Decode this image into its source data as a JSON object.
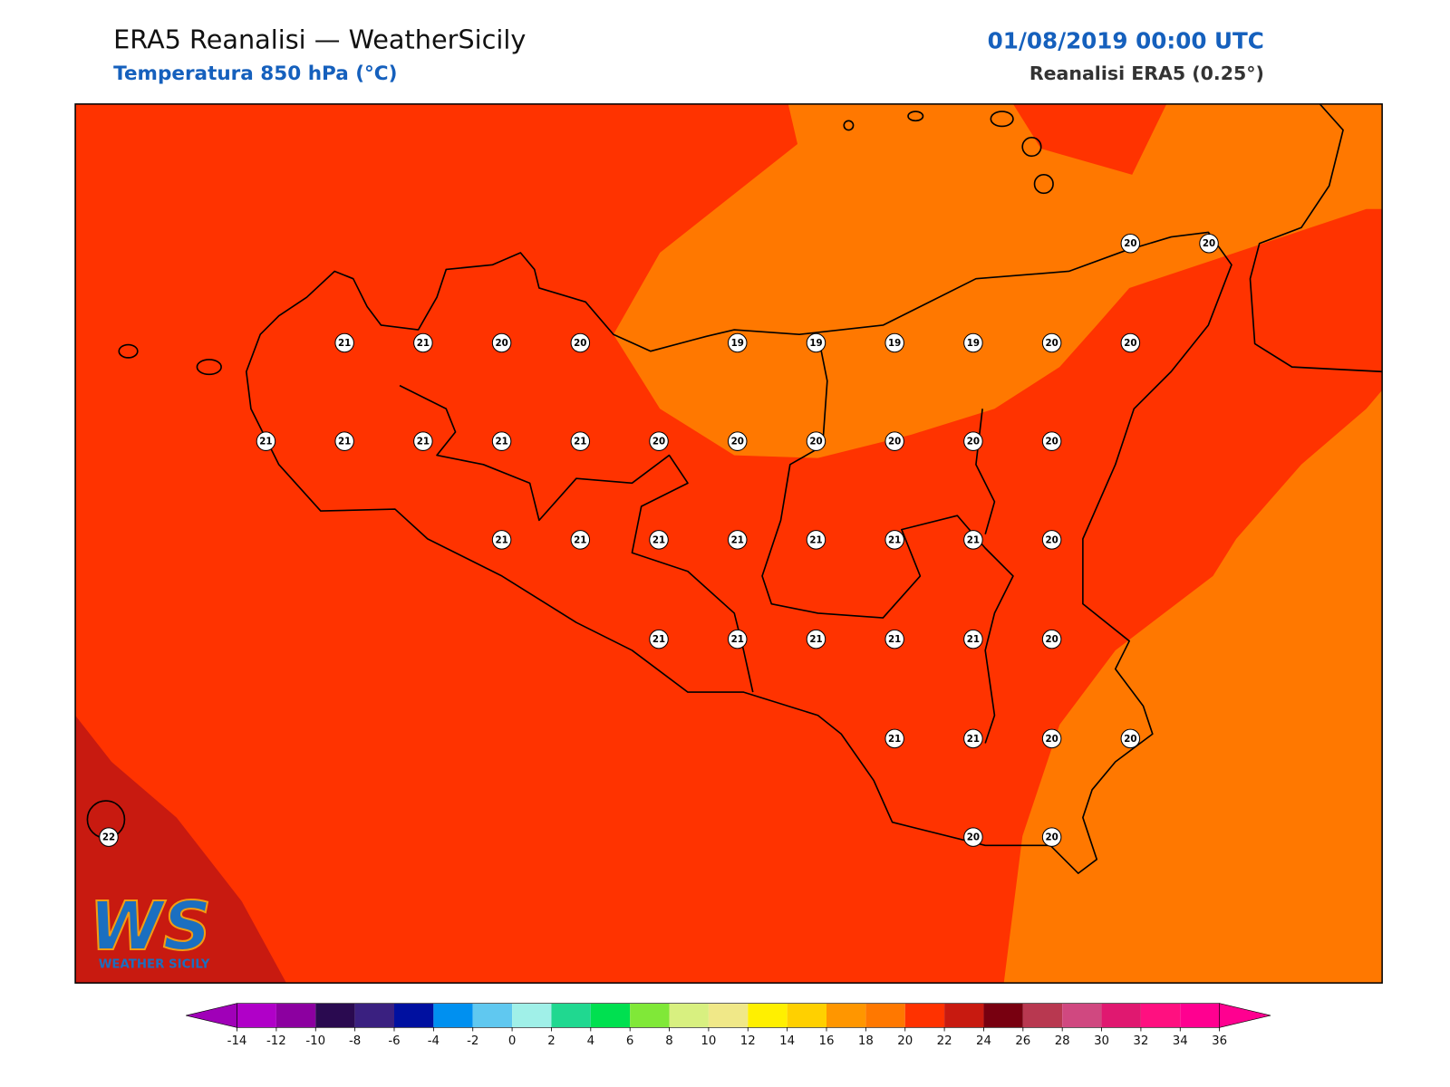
{
  "header": {
    "title": "ERA5 Reanalisi — WeatherSicily",
    "subtitle": "Temperatura 850 hPa (°C)",
    "date": "01/08/2019 00:00 UTC",
    "source": "Reanalisi ERA5 (0.25°)"
  },
  "stations": {
    "rows": [
      [
        null,
        null,
        null,
        null,
        null,
        null,
        null,
        null,
        null,
        null,
        null,
        null,
        null,
        20,
        20
      ],
      [
        null,
        null,
        null,
        21,
        21,
        20,
        20,
        null,
        19,
        19,
        19,
        19,
        20,
        20,
        null
      ],
      [
        null,
        null,
        21,
        21,
        21,
        21,
        21,
        20,
        20,
        20,
        20,
        20,
        20,
        null,
        null
      ],
      [
        null,
        null,
        null,
        null,
        null,
        21,
        21,
        21,
        21,
        21,
        21,
        21,
        20,
        null,
        null
      ],
      [
        null,
        null,
        null,
        null,
        null,
        null,
        null,
        21,
        21,
        21,
        21,
        21,
        20,
        null,
        null
      ],
      [
        null,
        null,
        null,
        null,
        null,
        null,
        null,
        null,
        null,
        null,
        21,
        21,
        20,
        20,
        null
      ],
      [
        22,
        null,
        null,
        null,
        null,
        null,
        null,
        null,
        null,
        null,
        null,
        20,
        20,
        null,
        null
      ]
    ]
  },
  "colorbar": {
    "ticks": [
      -14,
      -12,
      -10,
      -8,
      -6,
      -4,
      -2,
      0,
      2,
      4,
      6,
      8,
      10,
      12,
      14,
      16,
      18,
      20,
      22,
      24,
      26,
      28,
      30,
      32,
      34,
      36
    ],
    "colors": [
      "#b000c8",
      "#8c00a0",
      "#2a0a50",
      "#3a2080",
      "#0010a0",
      "#0090f0",
      "#60c8f0",
      "#a0f0e8",
      "#20d890",
      "#00e050",
      "#80e838",
      "#d8f080",
      "#f0e888",
      "#fff000",
      "#ffd000",
      "#ff9600",
      "#ff7800",
      "#ff3200",
      "#c81a10",
      "#780010",
      "#b83850",
      "#d04880",
      "#e01870",
      "#ff1080",
      "#ff0090"
    ],
    "under_color": "#a000b8",
    "over_color": "#ff0090"
  },
  "logo": {
    "mark": "WS",
    "name": "WEATHER SICILY"
  }
}
